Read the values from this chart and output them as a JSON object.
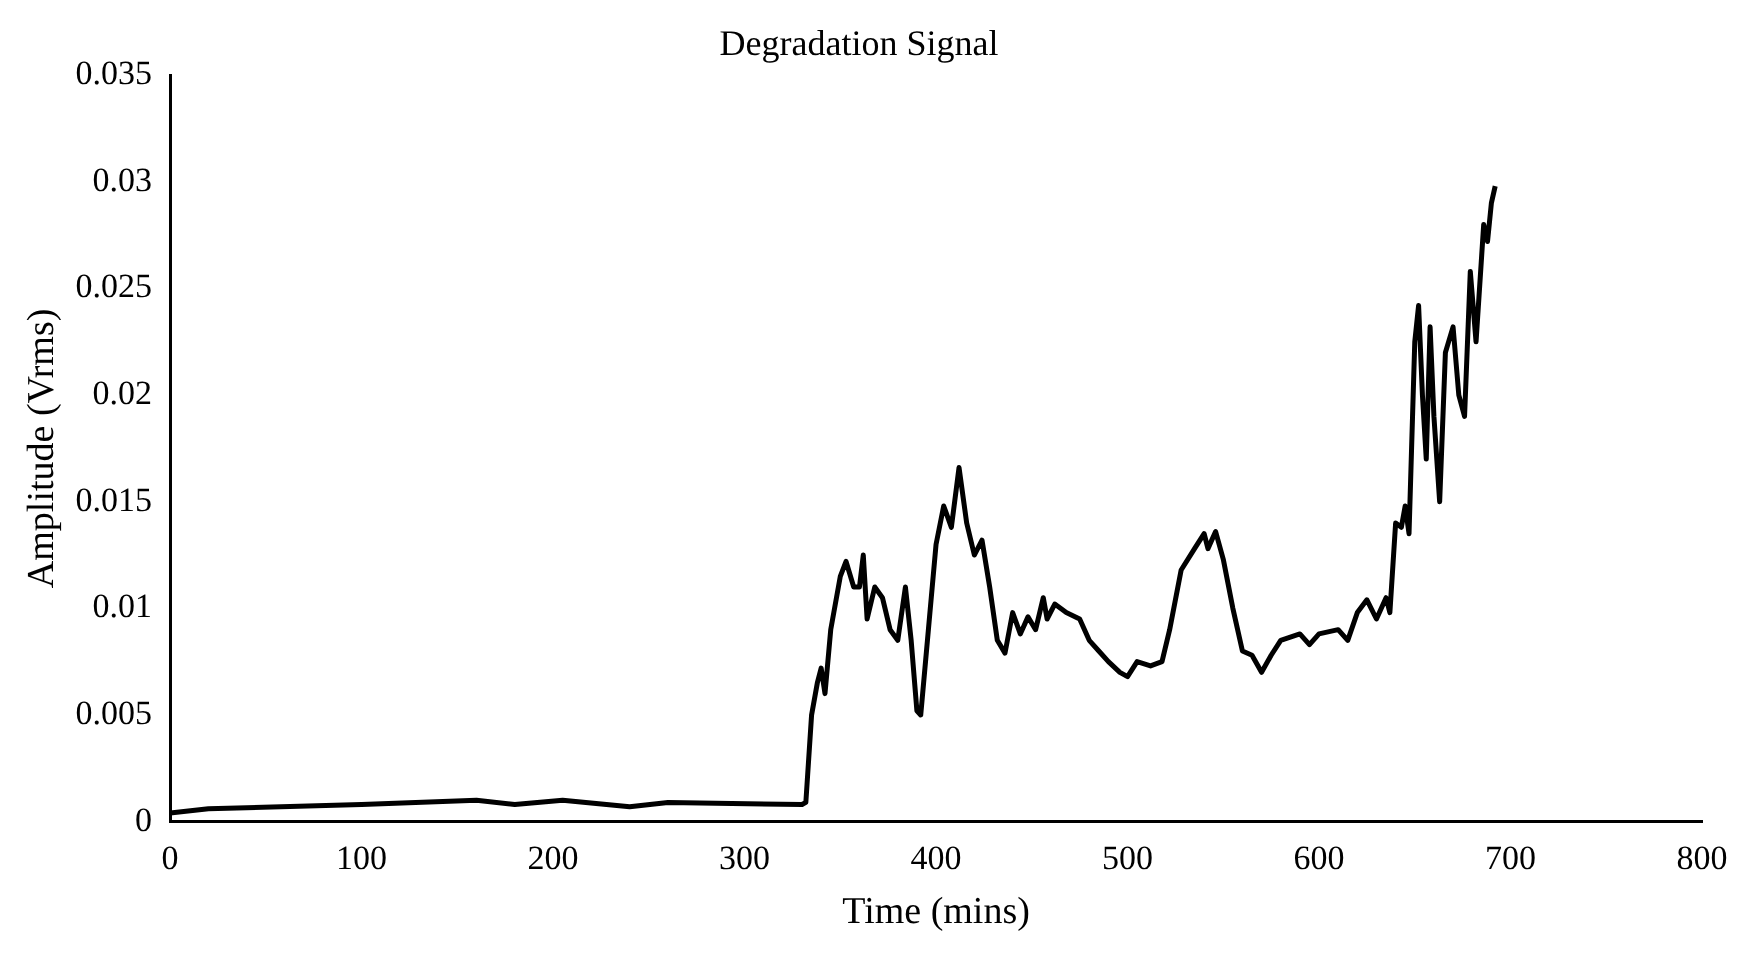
{
  "chart_data": {
    "type": "line",
    "title": "Degradation Signal",
    "xlabel": "Time (mins)",
    "ylabel": "Amplitude (Vrms)",
    "x": [
      0,
      20,
      100,
      160,
      180,
      205,
      240,
      260,
      330,
      332,
      335,
      338,
      340,
      342,
      345,
      350,
      353,
      357,
      360,
      362,
      364,
      368,
      372,
      376,
      380,
      384,
      387,
      390,
      392,
      396,
      400,
      404,
      408,
      412,
      416,
      420,
      424,
      428,
      432,
      436,
      440,
      444,
      448,
      452,
      456,
      458,
      462,
      468,
      475,
      480,
      485,
      490,
      496,
      500,
      505,
      512,
      518,
      522,
      528,
      535,
      540,
      542,
      546,
      550,
      555,
      560,
      565,
      570,
      575,
      580,
      590,
      595,
      600,
      610,
      615,
      620,
      625,
      630,
      635,
      637,
      640,
      643,
      645,
      647,
      650,
      652,
      654,
      656,
      658,
      660,
      663,
      666,
      670,
      673,
      676,
      679,
      682,
      686,
      688,
      690,
      692
    ],
    "series": [
      {
        "color": "#000000",
        "values": [
          0.0004,
          0.0006,
          0.0008,
          0.001,
          0.0008,
          0.001,
          0.0007,
          0.0009,
          0.0008,
          0.0009,
          0.005,
          0.0065,
          0.0072,
          0.006,
          0.009,
          0.0115,
          0.0122,
          0.011,
          0.011,
          0.0125,
          0.0095,
          0.011,
          0.0105,
          0.009,
          0.0085,
          0.011,
          0.0085,
          0.0052,
          0.005,
          0.009,
          0.013,
          0.0148,
          0.0138,
          0.0166,
          0.014,
          0.0125,
          0.0132,
          0.011,
          0.0085,
          0.0079,
          0.0098,
          0.0088,
          0.0096,
          0.009,
          0.0105,
          0.0095,
          0.0102,
          0.0098,
          0.0095,
          0.0085,
          0.008,
          0.0075,
          0.007,
          0.0068,
          0.0075,
          0.0073,
          0.0075,
          0.009,
          0.0118,
          0.0128,
          0.0135,
          0.0128,
          0.0136,
          0.0123,
          0.01,
          0.008,
          0.0078,
          0.007,
          0.0078,
          0.0085,
          0.0088,
          0.0083,
          0.0088,
          0.009,
          0.0085,
          0.0098,
          0.0104,
          0.0095,
          0.0105,
          0.0098,
          0.014,
          0.0138,
          0.0148,
          0.0135,
          0.0225,
          0.0242,
          0.02,
          0.017,
          0.0232,
          0.019,
          0.015,
          0.022,
          0.0232,
          0.02,
          0.019,
          0.0258,
          0.0225,
          0.028,
          0.0272,
          0.029,
          0.0298
        ]
      }
    ],
    "xlim": [
      0,
      800
    ],
    "xticks": [
      0,
      100,
      200,
      300,
      400,
      500,
      600,
      700,
      800
    ],
    "ylim": [
      0,
      0.035
    ],
    "yticks": [
      0,
      0.005,
      0.01,
      0.015,
      0.02,
      0.025,
      0.03,
      0.035
    ],
    "grid": false,
    "legend": false,
    "marker": "none",
    "line_style": "solid"
  }
}
